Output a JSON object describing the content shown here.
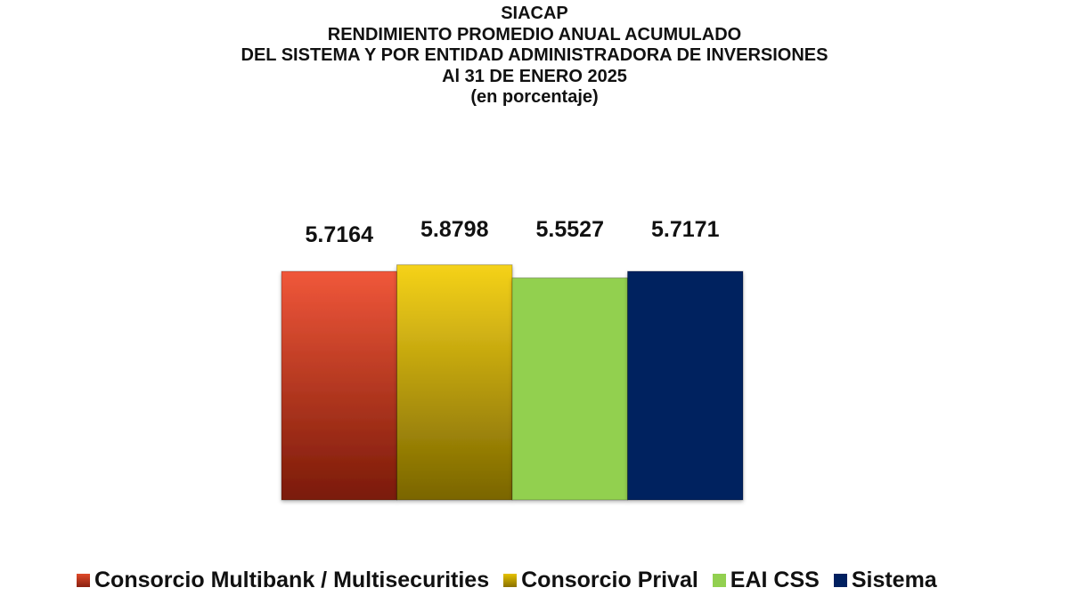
{
  "chart_data": {
    "type": "bar",
    "title_lines": [
      "SIACAP",
      "RENDIMIENTO PROMEDIO ANUAL ACUMULADO",
      "DEL SISTEMA Y POR ENTIDAD ADMINISTRADORA DE INVERSIONES",
      "Al 31 DE ENERO 2025",
      "(en porcentaje)"
    ],
    "categories": [
      "Consorcio Multibank / Multisecurities",
      "Consorcio Prival",
      "EAI CSS",
      "Sistema"
    ],
    "values": [
      5.7164,
      5.8798,
      5.5527,
      5.7171
    ],
    "value_labels": [
      "5.7164",
      "5.8798",
      "5.5527",
      "5.7171"
    ],
    "colors": [
      "#c8361a",
      "#c9a800",
      "#92d050",
      "#002060"
    ],
    "xlabel": "",
    "ylabel": "",
    "ylim": [
      0,
      7
    ],
    "grid": false,
    "legend_position": "bottom"
  }
}
